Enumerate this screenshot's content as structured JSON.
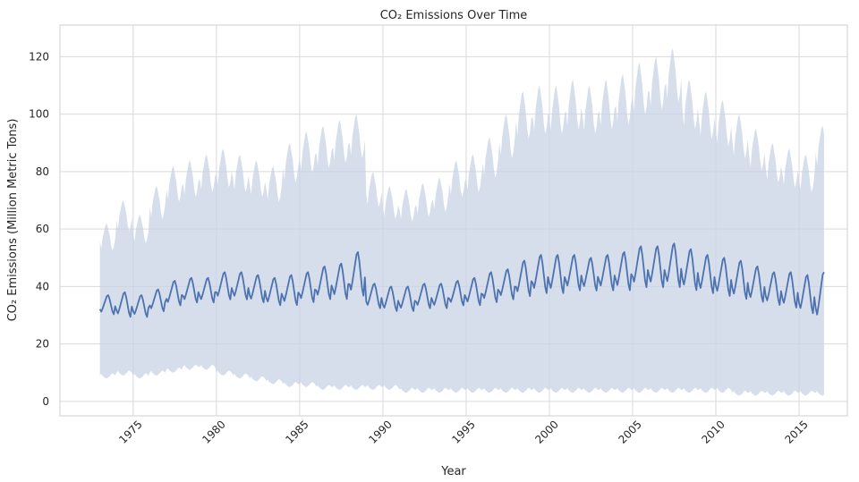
{
  "chart_data": {
    "type": "line",
    "title": "CO₂ Emissions Over Time",
    "xlabel": "Year",
    "ylabel": "CO₂ Emissions (Million Metric Tons)",
    "xlim": [
      1970.6,
      2017.9
    ],
    "ylim": [
      -5,
      131
    ],
    "x_ticks": [
      "1975",
      "1980",
      "1985",
      "1990",
      "1995",
      "2000",
      "2005",
      "2010",
      "2015"
    ],
    "y_ticks": [
      "0",
      "20",
      "40",
      "60",
      "80",
      "100",
      "120"
    ],
    "grid": true,
    "x_start_year": 1973,
    "series": [
      {
        "style": "mean line with shaded min-max band",
        "yearly": {
          "x": [
            1973,
            1974,
            1975,
            1976,
            1977,
            1978,
            1979,
            1980,
            1981,
            1982,
            1983,
            1984,
            1985,
            1986,
            1987,
            1988,
            1989,
            1990,
            1991,
            1992,
            1993,
            1994,
            1995,
            1996,
            1997,
            1998,
            1999,
            2000,
            2001,
            2002,
            2003,
            2004,
            2005,
            2006,
            2007,
            2008,
            2009,
            2010,
            2011,
            2012,
            2013,
            2014,
            2015,
            2016
          ],
          "mean_low": [
            30,
            29,
            29,
            31,
            33,
            34,
            34,
            35,
            35,
            34,
            33,
            33,
            34,
            35,
            35,
            36,
            32,
            31,
            31,
            32,
            32,
            33,
            33,
            34,
            35,
            36,
            37,
            37,
            38,
            38,
            38,
            38,
            39,
            39,
            39,
            38,
            37,
            36,
            35,
            34,
            33,
            32,
            30,
            27
          ],
          "mean_high": [
            37,
            38,
            37,
            39,
            42,
            43,
            43,
            45,
            45,
            44,
            43,
            44,
            45,
            47,
            48,
            52,
            41,
            40,
            40,
            41,
            41,
            42,
            43,
            45,
            46,
            49,
            51,
            51,
            51,
            50,
            51,
            52,
            54,
            54,
            55,
            53,
            51,
            50,
            49,
            47,
            45,
            45,
            44,
            45
          ],
          "band_low": [
            8,
            9,
            8,
            9,
            10,
            11,
            11,
            9,
            8,
            7,
            6,
            5,
            5,
            4,
            4,
            4,
            4,
            4,
            3,
            3,
            3,
            3,
            3,
            3,
            3,
            3,
            3,
            3,
            3,
            3,
            3,
            3,
            3,
            3,
            3,
            3,
            3,
            3,
            2,
            2,
            2,
            2,
            2,
            2
          ],
          "band_high": [
            62,
            70,
            65,
            75,
            82,
            84,
            86,
            88,
            86,
            84,
            82,
            90,
            94,
            96,
            98,
            100,
            80,
            75,
            74,
            76,
            78,
            84,
            86,
            92,
            100,
            108,
            110,
            110,
            112,
            110,
            112,
            114,
            118,
            120,
            123,
            112,
            108,
            105,
            100,
            95,
            90,
            88,
            86,
            96
          ]
        }
      }
    ],
    "colors": {
      "line": "#4c72b0",
      "band": "#c8d3e6",
      "grid": "#d9d9de",
      "axes_frame": "#cfcfd6"
    }
  }
}
